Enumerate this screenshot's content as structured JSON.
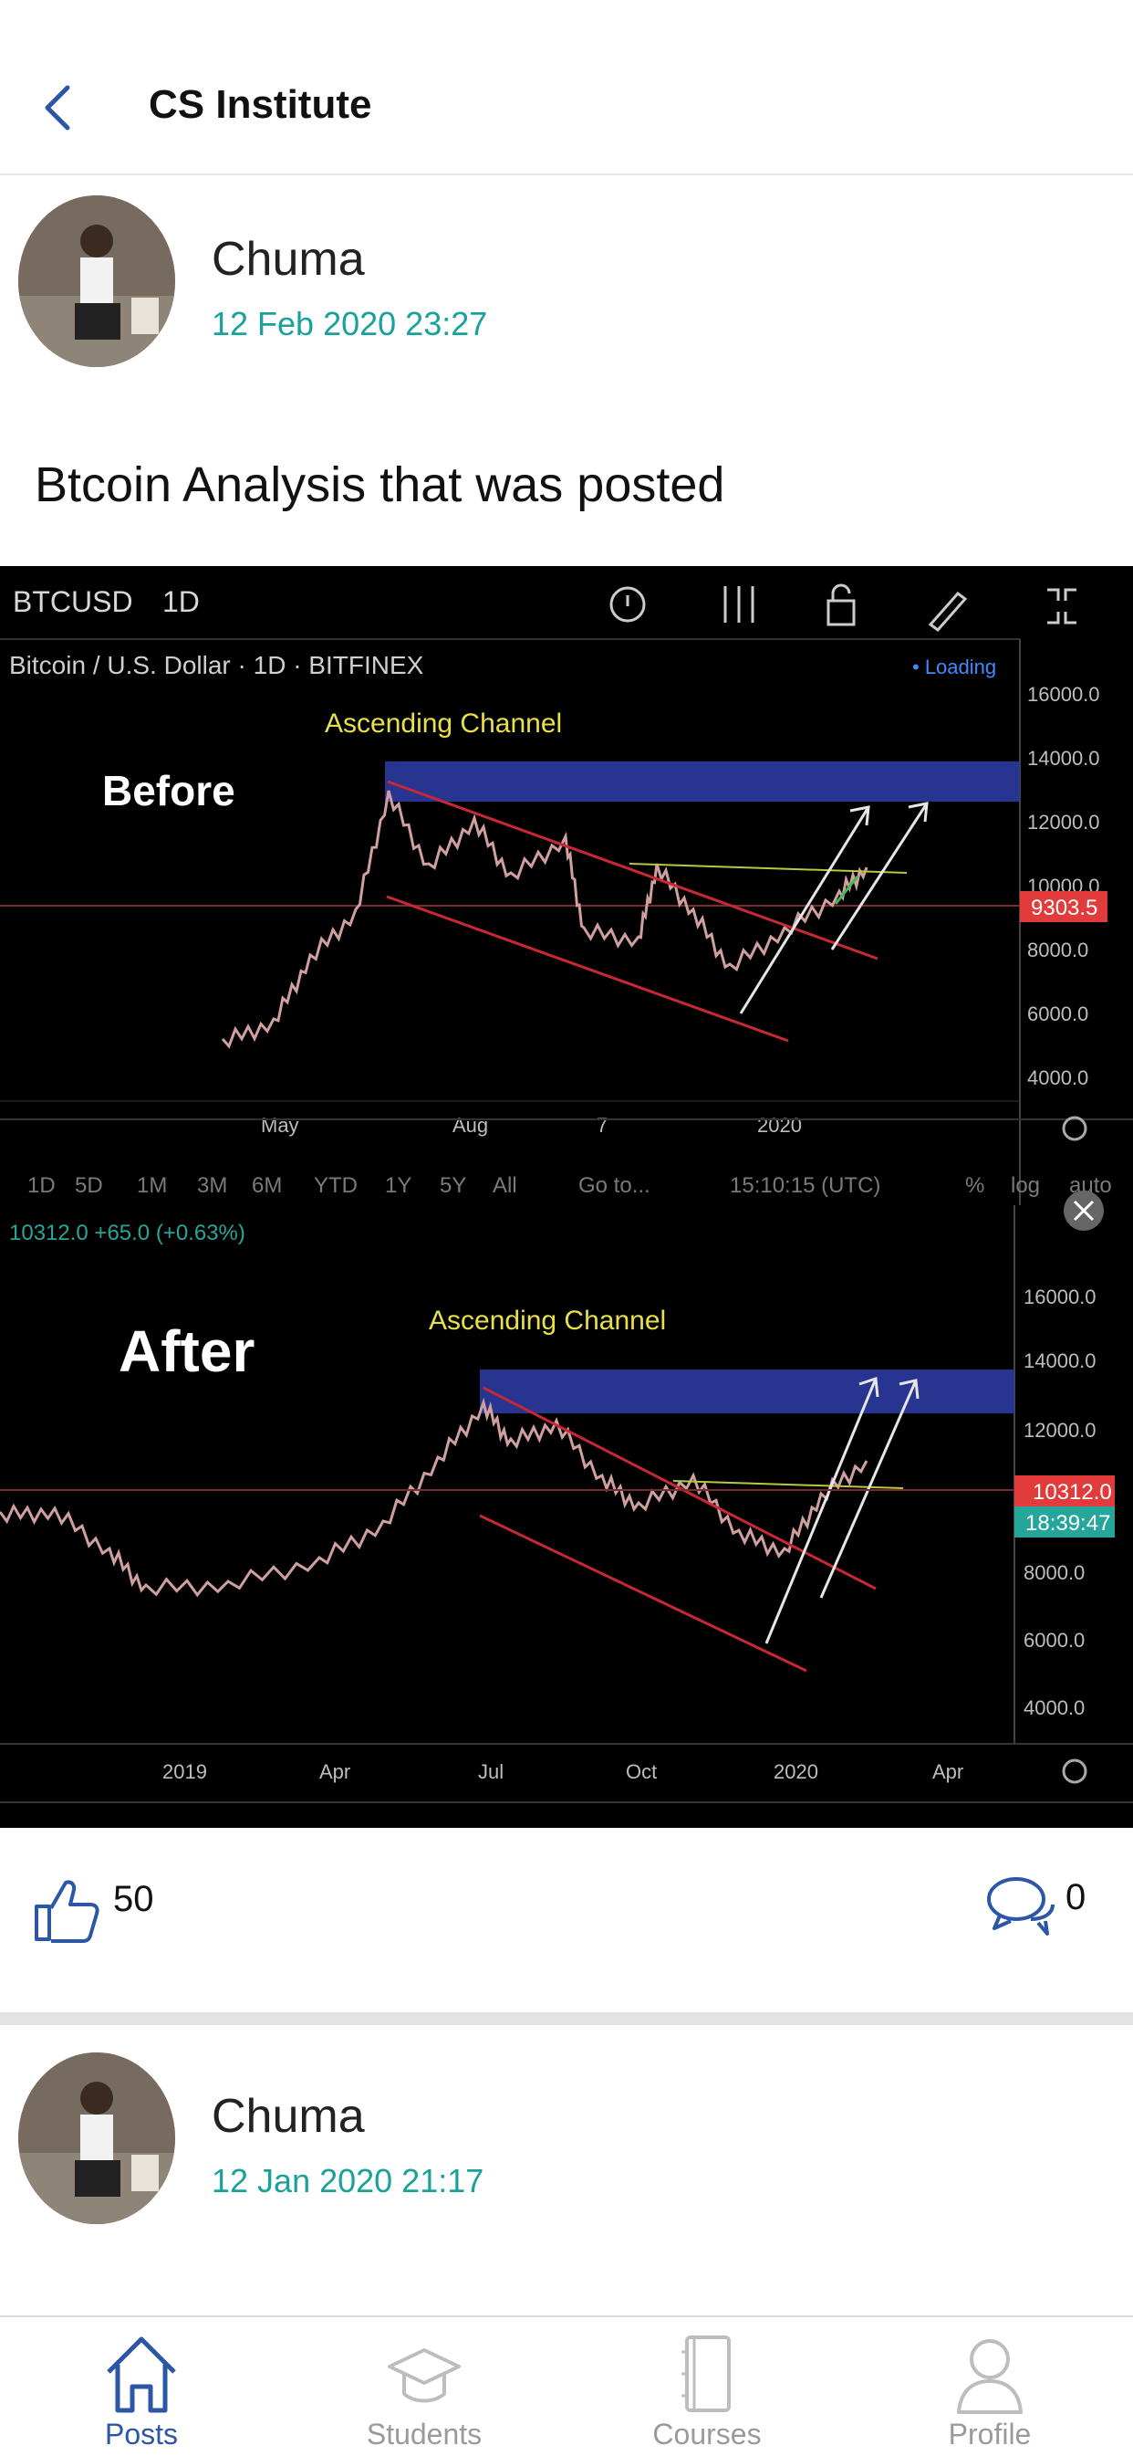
{
  "header": {
    "title": "CS Institute"
  },
  "posts": [
    {
      "author": "Chuma",
      "date": "12 Feb 2020 23:27",
      "text": "Btcoin Analysis that was posted",
      "likes": "50",
      "comments": "0"
    },
    {
      "author": "Chuma",
      "date": "12 Jan 2020 21:17"
    }
  ],
  "chart_top": {
    "symbol": "BTCUSD",
    "interval": "1D",
    "pair_title": "Bitcoin / U.S. Dollar · 1D · BITFINEX",
    "loading": "• Loading",
    "label": "Before",
    "annotation": "Ascending Channel",
    "price_badge": "9303.5",
    "y_ticks": [
      "16000.0",
      "14000.0",
      "12000.0",
      "10000.0",
      "8000.0",
      "6000.0",
      "4000.0"
    ],
    "x_ticks": [
      "May",
      "Aug",
      "7",
      "2020"
    ],
    "ranges": [
      "1D",
      "5D",
      "1M",
      "3M",
      "6M",
      "YTD",
      "1Y",
      "5Y",
      "All"
    ],
    "goto": "Go to...",
    "time": "15:10:15 (UTC)",
    "pct": "%",
    "log": "log",
    "auto": "auto"
  },
  "chart_bottom": {
    "quote": "10312.0 +65.0 (+0.63%)",
    "label": "After",
    "annotation": "Ascending Channel",
    "price_badge": "10312.0",
    "time_badge": "18:39:47",
    "y_ticks": [
      "16000.0",
      "14000.0",
      "12000.0",
      "8000.0",
      "6000.0",
      "4000.0"
    ],
    "x_ticks": [
      "2019",
      "Apr",
      "Jul",
      "Oct",
      "2020",
      "Apr"
    ]
  },
  "nav": [
    {
      "label": "Posts",
      "icon": "home-icon",
      "active": true
    },
    {
      "label": "Students",
      "icon": "graduation-cap-icon",
      "active": false
    },
    {
      "label": "Courses",
      "icon": "notebook-icon",
      "active": false
    },
    {
      "label": "Profile",
      "icon": "user-icon",
      "active": false
    }
  ],
  "colors": {
    "accent": "#2c56a6",
    "date": "#1aa19b",
    "channel": "#c62835",
    "zone": "#2b3aa0",
    "price_red": "#e23b3b",
    "price_green": "#26a69a"
  }
}
